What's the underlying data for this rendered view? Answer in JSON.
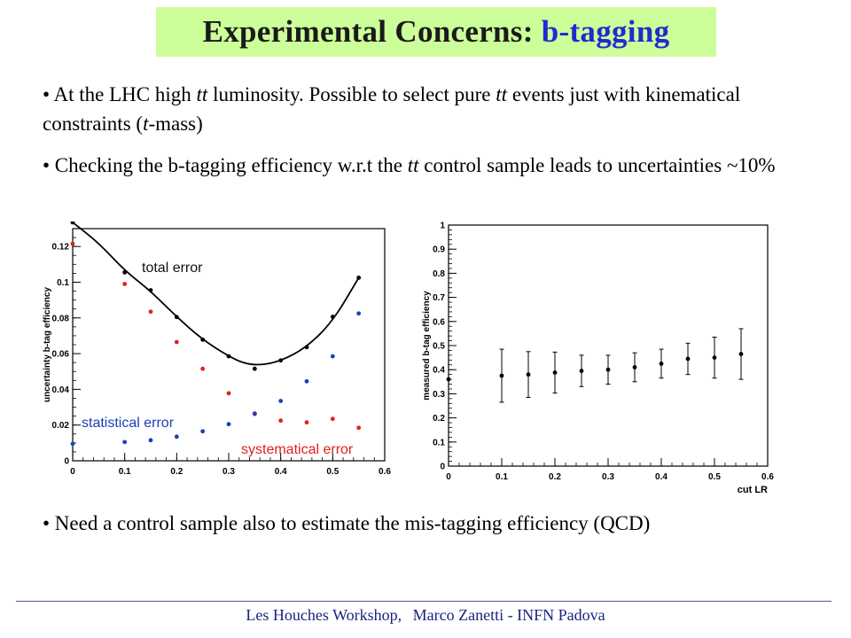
{
  "slide": {
    "title_prefix": "Experimental Concerns:",
    "title_accent": "b-tagging",
    "bullets": [
      {
        "parts": [
          {
            "t": "• At the LHC high ",
            "i": false
          },
          {
            "t": "tt",
            "i": true
          },
          {
            "t": " luminosity. Possible to select pure ",
            "i": false
          },
          {
            "t": "tt",
            "i": true
          },
          {
            "t": " events just with kinematical constraints (",
            "i": false
          },
          {
            "t": "t",
            "i": true
          },
          {
            "t": "-mass)",
            "i": false
          }
        ]
      },
      {
        "parts": [
          {
            "t": "• Checking the b-tagging efficiency w.r.t the ",
            "i": false
          },
          {
            "t": "tt",
            "i": true
          },
          {
            "t": " control sample leads to uncertainties ~10%",
            "i": false
          }
        ]
      },
      {
        "parts": [
          {
            "t": "• Need a control sample also to estimate the mis-tagging efficiency (QCD)",
            "i": false
          }
        ]
      }
    ],
    "footer_event": "Les Houches Workshop,",
    "footer_author": "Marco Zanetti -  INFN Padova"
  },
  "chart_data": [
    {
      "type": "scatter",
      "xlabel": "",
      "ylabel": "uncertainty b-tag efficiency",
      "xlim": [
        0,
        0.6
      ],
      "ylim": [
        0,
        0.13
      ],
      "xticks": [
        "0",
        "0.1",
        "0.2",
        "0.3",
        "0.4",
        "0.5",
        "0.6"
      ],
      "yticks": [
        "0",
        "0.02",
        "0.04",
        "0.06",
        "0.08",
        "0.1",
        "0.12"
      ],
      "series": [
        {
          "name": "total error",
          "color": "#000000",
          "x": [
            0,
            0.1,
            0.15,
            0.2,
            0.25,
            0.3,
            0.35,
            0.4,
            0.45,
            0.5,
            0.55
          ],
          "y": [
            0.1335,
            0.1055,
            0.0955,
            0.0805,
            0.0678,
            0.0585,
            0.0515,
            0.0562,
            0.0636,
            0.0806,
            0.1025
          ]
        },
        {
          "name": "systematical error",
          "color": "#e02020",
          "x": [
            0,
            0.1,
            0.15,
            0.2,
            0.25,
            0.3,
            0.35,
            0.4,
            0.45,
            0.5,
            0.55
          ],
          "y": [
            0.1215,
            0.099,
            0.0835,
            0.0665,
            0.0515,
            0.0378,
            0.0262,
            0.0225,
            0.0215,
            0.0235,
            0.0185
          ]
        },
        {
          "name": "statistical error",
          "color": "#1a3fb8",
          "x": [
            0,
            0.1,
            0.15,
            0.2,
            0.25,
            0.3,
            0.35,
            0.4,
            0.45,
            0.5,
            0.55
          ],
          "y": [
            0.0095,
            0.0105,
            0.0115,
            0.0135,
            0.0165,
            0.0205,
            0.0265,
            0.0335,
            0.0445,
            0.0585,
            0.0825
          ]
        }
      ],
      "curve": {
        "x": [
          0,
          0.05,
          0.1,
          0.15,
          0.2,
          0.25,
          0.3,
          0.33,
          0.36,
          0.4,
          0.45,
          0.5,
          0.55
        ],
        "y": [
          0.1335,
          0.122,
          0.1065,
          0.095,
          0.0805,
          0.0678,
          0.0585,
          0.0545,
          0.0535,
          0.0558,
          0.0636,
          0.078,
          0.1025
        ]
      },
      "annotations": [
        "total error",
        "statistical error",
        "systematical error"
      ]
    },
    {
      "type": "scatter",
      "xlabel": "cut LR",
      "ylabel": "measured b-tag efficiency",
      "xlim": [
        0,
        0.6
      ],
      "ylim": [
        0,
        1
      ],
      "xticks": [
        "0",
        "0.1",
        "0.2",
        "0.3",
        "0.4",
        "0.5",
        "0.6"
      ],
      "yticks": [
        "0",
        "0.1",
        "0.2",
        "0.3",
        "0.4",
        "0.5",
        "0.6",
        "0.7",
        "0.8",
        "0.9",
        "1"
      ],
      "series": [
        {
          "name": "",
          "color": "#000000",
          "x": [
            0,
            0.1,
            0.15,
            0.2,
            0.25,
            0.3,
            0.35,
            0.4,
            0.45,
            0.5,
            0.55
          ],
          "y": [
            0.36,
            0.375,
            0.38,
            0.388,
            0.395,
            0.4,
            0.41,
            0.425,
            0.445,
            0.45,
            0.465
          ],
          "err": [
            0.0,
            0.11,
            0.095,
            0.085,
            0.065,
            0.06,
            0.06,
            0.06,
            0.065,
            0.085,
            0.105
          ]
        }
      ]
    }
  ]
}
